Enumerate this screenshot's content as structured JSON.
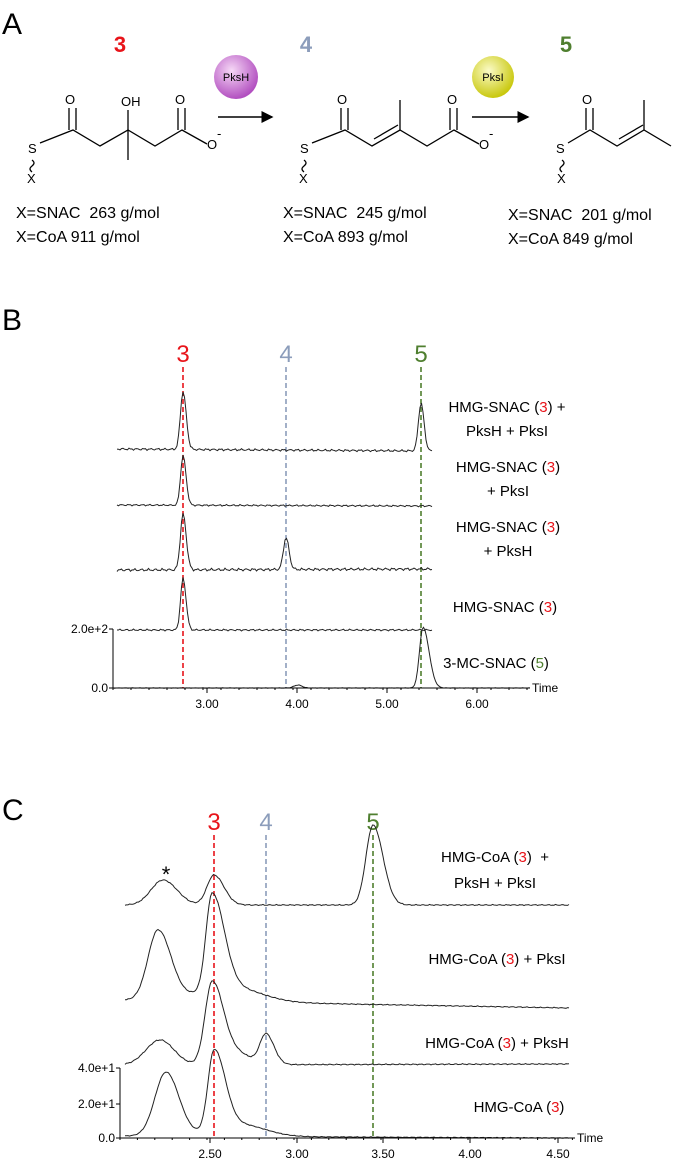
{
  "panel_a": {
    "label": "A",
    "compounds": [
      {
        "number": "3",
        "color": "#e8141a",
        "atoms": [
          "OH",
          "O",
          "O",
          "-",
          "S",
          "X"
        ],
        "masses": [
          "X=SNAC  263 g/mol",
          "X=CoA 911 g/mol"
        ]
      },
      {
        "number": "4",
        "color": "#8c9dbb",
        "atoms": [
          "O",
          "O",
          "-",
          "S",
          "X"
        ],
        "masses": [
          "X=SNAC  245 g/mol",
          "X=CoA 893 g/mol"
        ]
      },
      {
        "number": "5",
        "color": "#4f7f2f",
        "atoms": [
          "O",
          "S",
          "X"
        ],
        "masses": [
          "X=SNAC  201 g/mol",
          "X=CoA 849 g/mol"
        ]
      }
    ],
    "enzymes": [
      "PksH",
      "PksI"
    ]
  },
  "panel_b": {
    "label": "B",
    "markers": [
      {
        "text": "3",
        "color": "#e8141a"
      },
      {
        "text": "4",
        "color": "#8c9dbb"
      },
      {
        "text": "5",
        "color": "#4f7f2f"
      }
    ],
    "traces": [
      {
        "lines": [
          {
            "pre": "HMG-SNAC (",
            "ref": "3",
            "post": ") +"
          },
          {
            "pre": "PksH + PksI"
          }
        ]
      },
      {
        "lines": [
          {
            "pre": "HMG-SNAC (",
            "ref": "3",
            "post": ")"
          },
          {
            "pre": "+ PksI"
          }
        ]
      },
      {
        "lines": [
          {
            "pre": "HMG-SNAC (",
            "ref": "3",
            "post": ")"
          },
          {
            "pre": "+ PksH"
          }
        ]
      },
      {
        "lines": [
          {
            "pre": "HMG-SNAC (",
            "ref": "3",
            "post": ")"
          }
        ]
      },
      {
        "lines": [
          {
            "pre": "3-MC-SNAC (",
            "ref": "5",
            "post": ")"
          }
        ]
      }
    ],
    "yticks": [
      "2.0e+2",
      "0.0"
    ],
    "xticks": [
      "3.00",
      "4.00",
      "5.00",
      "6.00"
    ],
    "xlabel": "Time"
  },
  "panel_c": {
    "label": "C",
    "markers": [
      {
        "text": "3",
        "color": "#e8141a"
      },
      {
        "text": "4",
        "color": "#8c9dbb"
      },
      {
        "text": "5",
        "color": "#4f7f2f"
      }
    ],
    "annotation": "*",
    "traces": [
      {
        "lines": [
          {
            "pre": "HMG-CoA (",
            "ref": "3",
            "post": ")  +"
          },
          {
            "pre": "PksH + PksI"
          }
        ]
      },
      {
        "lines": [
          {
            "pre": "HMG-CoA (",
            "ref": "3",
            "post": ") + PksI"
          }
        ]
      },
      {
        "lines": [
          {
            "pre": "HMG-CoA (",
            "ref": "3",
            "post": ") + PksH"
          }
        ]
      },
      {
        "lines": [
          {
            "pre": "HMG-CoA (",
            "ref": "3",
            "post": ")"
          }
        ]
      }
    ],
    "yticks": [
      "4.0e+1",
      "2.0e+1",
      "0.0"
    ],
    "xticks": [
      "2.50",
      "3.00",
      "3.50",
      "4.00",
      "4.50"
    ],
    "xlabel": "Time"
  }
}
